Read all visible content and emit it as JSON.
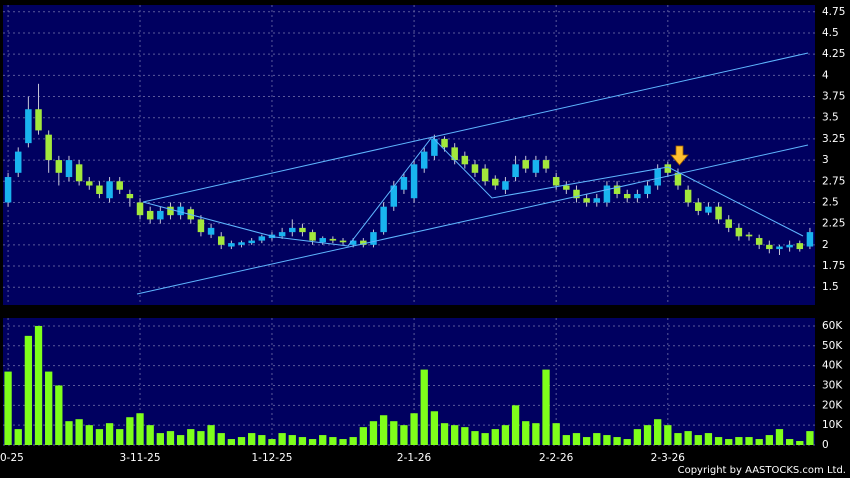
{
  "chart_data": [
    {
      "type": "candlestick",
      "up_color": "#19b4ef",
      "down_color": "#a3e83c",
      "wick_color": "#c8c8d8",
      "open": [
        2.5,
        2.85,
        3.2,
        3.6,
        3.3,
        3.0,
        2.8,
        2.95,
        2.75,
        2.7,
        2.55,
        2.75,
        2.6,
        2.5,
        2.4,
        2.3,
        2.45,
        2.35,
        2.42,
        2.3,
        2.12,
        2.1,
        1.98,
        2.0,
        2.02,
        2.05,
        2.08,
        2.1,
        2.15,
        2.2,
        2.15,
        2.03,
        2.07,
        2.05,
        2.0,
        2.05,
        2.0,
        2.15,
        2.45,
        2.65,
        2.55,
        2.9,
        3.05,
        3.25,
        3.15,
        3.05,
        2.95,
        2.9,
        2.78,
        2.65,
        2.8,
        3.0,
        2.85,
        3.0,
        2.8,
        2.7,
        2.65,
        2.55,
        2.5,
        2.5,
        2.7,
        2.6,
        2.55,
        2.6,
        2.7,
        2.95,
        2.85,
        2.65,
        2.5,
        2.38,
        2.45,
        2.3,
        2.2,
        2.12,
        2.08,
        2.0,
        1.95,
        1.97,
        2.02,
        1.98
      ],
      "high": [
        2.85,
        3.15,
        3.75,
        3.9,
        3.35,
        3.05,
        3.05,
        3.0,
        2.8,
        2.75,
        2.8,
        2.8,
        2.65,
        2.55,
        2.45,
        2.45,
        2.5,
        2.5,
        2.45,
        2.35,
        2.25,
        2.15,
        2.05,
        2.05,
        2.08,
        2.12,
        2.15,
        2.2,
        2.3,
        2.25,
        2.18,
        2.1,
        2.1,
        2.08,
        2.08,
        2.08,
        2.18,
        2.5,
        2.75,
        2.85,
        3.0,
        3.15,
        3.3,
        3.28,
        3.2,
        3.1,
        3.0,
        2.95,
        2.82,
        2.8,
        3.05,
        3.05,
        3.05,
        3.05,
        2.85,
        2.75,
        2.7,
        2.6,
        2.6,
        2.75,
        2.75,
        2.65,
        2.65,
        2.75,
        2.95,
        2.98,
        2.9,
        2.7,
        2.55,
        2.5,
        2.5,
        2.35,
        2.25,
        2.15,
        2.12,
        2.05,
        2.0,
        2.05,
        2.05,
        2.2
      ],
      "low": [
        2.45,
        2.8,
        3.15,
        3.3,
        2.85,
        2.7,
        2.75,
        2.7,
        2.65,
        2.55,
        2.5,
        2.6,
        2.45,
        2.3,
        2.25,
        2.25,
        2.3,
        2.3,
        2.25,
        2.1,
        2.08,
        1.95,
        1.95,
        1.97,
        2.0,
        2.02,
        2.05,
        2.07,
        2.1,
        2.1,
        2.0,
        2.0,
        2.02,
        2.0,
        1.97,
        1.97,
        1.97,
        2.12,
        2.4,
        2.6,
        2.5,
        2.85,
        3.0,
        3.1,
        2.95,
        2.9,
        2.8,
        2.7,
        2.65,
        2.6,
        2.75,
        2.85,
        2.8,
        2.85,
        2.65,
        2.6,
        2.5,
        2.45,
        2.45,
        2.45,
        2.55,
        2.5,
        2.5,
        2.55,
        2.65,
        2.8,
        2.65,
        2.45,
        2.35,
        2.35,
        2.25,
        2.15,
        2.05,
        2.05,
        1.95,
        1.9,
        1.88,
        1.92,
        1.92,
        1.95
      ],
      "close": [
        2.8,
        3.1,
        3.6,
        3.35,
        3.0,
        2.85,
        3.0,
        2.75,
        2.7,
        2.6,
        2.75,
        2.65,
        2.55,
        2.35,
        2.3,
        2.4,
        2.35,
        2.45,
        2.3,
        2.15,
        2.2,
        2.0,
        2.02,
        2.03,
        2.05,
        2.1,
        2.12,
        2.15,
        2.2,
        2.15,
        2.05,
        2.08,
        2.05,
        2.03,
        2.05,
        2.0,
        2.15,
        2.45,
        2.7,
        2.8,
        2.95,
        3.1,
        3.25,
        3.15,
        3.0,
        2.95,
        2.85,
        2.75,
        2.7,
        2.75,
        2.95,
        2.9,
        3.0,
        2.9,
        2.7,
        2.65,
        2.55,
        2.5,
        2.55,
        2.7,
        2.6,
        2.55,
        2.6,
        2.7,
        2.9,
        2.85,
        2.7,
        2.5,
        2.4,
        2.45,
        2.3,
        2.2,
        2.1,
        2.1,
        2.0,
        1.95,
        1.98,
        2.0,
        1.95,
        2.15
      ],
      "ylim": [
        1.29,
        4.83
      ],
      "yticks": [
        1.5,
        1.75,
        2,
        2.25,
        2.5,
        2.75,
        3,
        3.25,
        3.5,
        3.75,
        4,
        4.25,
        4.5,
        4.75
      ],
      "grid": true
    },
    {
      "type": "bar",
      "color": "#7fff1a",
      "categories": [
        "0-25",
        null,
        null,
        null,
        null,
        null,
        null,
        null,
        null,
        null,
        null,
        null,
        null,
        "3-11-25",
        null,
        null,
        null,
        null,
        null,
        null,
        null,
        null,
        null,
        null,
        null,
        null,
        "1-12-25",
        null,
        null,
        null,
        null,
        null,
        null,
        null,
        null,
        null,
        null,
        null,
        null,
        null,
        "2-1-26",
        null,
        null,
        null,
        null,
        null,
        null,
        null,
        null,
        null,
        null,
        null,
        null,
        null,
        "2-2-26",
        null,
        null,
        null,
        null,
        null,
        null,
        null,
        null,
        null,
        null,
        "2-3-26",
        null,
        null,
        null,
        null,
        null,
        null,
        null,
        null,
        null,
        null,
        null,
        null,
        null,
        null
      ],
      "values": [
        37000,
        8000,
        55000,
        60000,
        37000,
        30000,
        12000,
        13000,
        10000,
        8000,
        11000,
        8000,
        14000,
        16000,
        10000,
        6000,
        7000,
        5000,
        8000,
        7000,
        10000,
        6000,
        3000,
        4000,
        6000,
        5000,
        3000,
        6000,
        5000,
        4000,
        3000,
        5000,
        4000,
        3000,
        4000,
        9000,
        12000,
        15000,
        12000,
        10000,
        16000,
        38000,
        17000,
        11000,
        10000,
        9000,
        7000,
        6000,
        8000,
        10000,
        20000,
        12000,
        11000,
        38000,
        11000,
        5000,
        6000,
        4000,
        6000,
        5000,
        4000,
        3000,
        8000,
        10000,
        13000,
        10000,
        6000,
        7000,
        5000,
        6000,
        4000,
        3000,
        4000,
        4000,
        3000,
        5000,
        8000,
        3000,
        2000,
        7000
      ],
      "ylim": [
        0,
        64000
      ],
      "yticks": [
        0,
        {
          "value": 10000,
          "label": "10K"
        },
        {
          "value": 20000,
          "label": "20K"
        },
        {
          "value": 30000,
          "label": "30K"
        },
        {
          "value": 40000,
          "label": "40K"
        },
        {
          "value": 50000,
          "label": "50K"
        },
        {
          "value": 60000,
          "label": "60K"
        }
      ],
      "grid": true,
      "copyright": "Copyright by AASTOCKS.com Ltd."
    }
  ]
}
